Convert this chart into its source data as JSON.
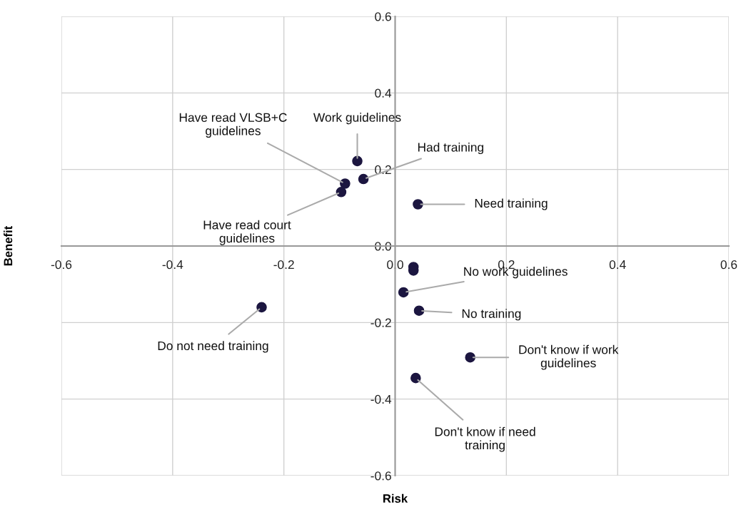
{
  "chart_data": {
    "type": "scatter",
    "xlabel": "Risk",
    "ylabel": "Benefit",
    "x": [
      -0.068,
      -0.057,
      -0.09,
      -0.097,
      0.041,
      0.033,
      0.033,
      0.015,
      0.043,
      -0.24,
      0.135,
      0.037
    ],
    "values": [
      0.222,
      0.175,
      0.163,
      0.141,
      0.109,
      -0.055,
      -0.064,
      -0.121,
      -0.169,
      -0.16,
      -0.291,
      -0.345
    ],
    "color": "#1c1640",
    "marker": "circle",
    "xlim": [
      -0.6,
      0.6
    ],
    "ylim": [
      -0.6,
      0.6
    ],
    "xticks": [
      -0.6,
      -0.4,
      -0.2,
      {
        "value": 0,
        "label": "0.0"
      },
      0.2,
      0.4,
      0.6
    ],
    "yticks": [
      -0.6,
      -0.4,
      -0.2,
      {
        "value": 0,
        "label": "0.0"
      },
      0.2,
      0.4,
      0.6
    ],
    "grid": true,
    "annotations": [
      {
        "text": "Work guidelines",
        "x": -0.068,
        "y": 0.222
      },
      {
        "text": "Had training",
        "x": -0.057,
        "y": 0.175
      },
      {
        "text": "Have read VLSB+C\nguidelines",
        "x": -0.09,
        "y": 0.163
      },
      {
        "text": "Have read court\nguidelines",
        "x": -0.097,
        "y": 0.141
      },
      {
        "text": "Need training",
        "x": 0.041,
        "y": 0.109
      },
      {
        "text": "No work guidelines",
        "x": 0.015,
        "y": -0.121
      },
      {
        "text": "No training",
        "x": 0.043,
        "y": -0.169
      },
      {
        "text": "Do not need training",
        "x": -0.24,
        "y": -0.16
      },
      {
        "text": "Don't know if work\nguidelines",
        "x": 0.135,
        "y": -0.291
      },
      {
        "text": "Don't know if need\ntraining",
        "x": 0.037,
        "y": -0.345
      }
    ]
  }
}
